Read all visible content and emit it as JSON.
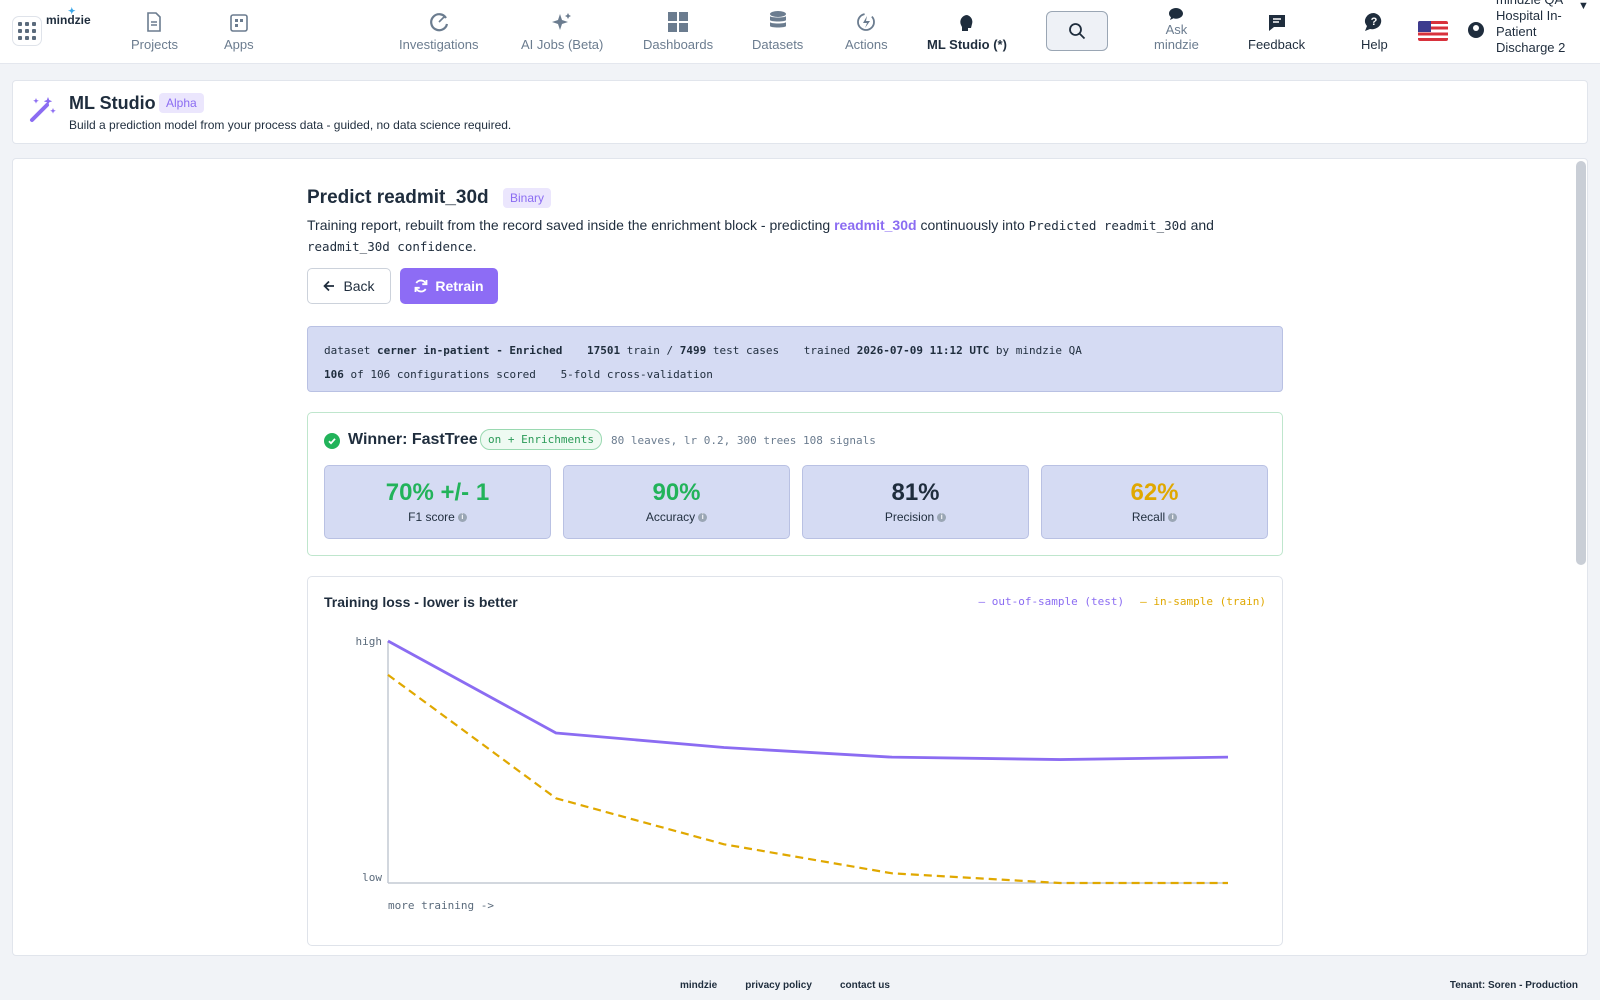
{
  "brand": {
    "logo_text": "mindzie"
  },
  "nav": {
    "projects": "Projects",
    "apps": "Apps",
    "investigations": "Investigations",
    "ai_jobs": "AI Jobs (Beta)",
    "dashboards": "Dashboards",
    "datasets": "Datasets",
    "actions": "Actions",
    "ml_studio": "ML Studio (*)",
    "ask_line1": "Ask",
    "ask_line2": "mindzie",
    "feedback": "Feedback",
    "help": "Help"
  },
  "user": {
    "name": "mindzie QA",
    "project": "Hospital In-Patient Discharge 2"
  },
  "header": {
    "title": "ML Studio",
    "badge": "Alpha",
    "subtitle": "Build a prediction model from your process data - guided, no data science required."
  },
  "report": {
    "title": "Predict readmit_30d",
    "badge": "Binary",
    "desc_prefix": "Training report, rebuilt from the record saved inside the enrichment block - predicting",
    "target": "readmit_30d",
    "desc_mid": "continuously into",
    "output_col": "Predicted readmit_30d",
    "desc_and": "and",
    "confidence_col": "readmit_30d confidence",
    "desc_end": ".",
    "back_label": "Back",
    "retrain_label": "Retrain"
  },
  "meta": {
    "dataset_label": "dataset",
    "dataset_name": "cerner in-patient - Enriched",
    "train_count": "17501",
    "train_label": "train /",
    "test_count": "7499",
    "test_label": "test cases",
    "trained_label": "trained",
    "trained_at": "2026-07-09 11:12 UTC",
    "by_label": "by mindzie QA",
    "configs_scored": "106",
    "configs_label": "of 106 configurations scored",
    "cv_label": "5-fold cross-validation"
  },
  "winner": {
    "title": "Winner: FastTree",
    "pill": "on + Enrichments",
    "params": "80 leaves, lr 0.2, 300 trees 108 signals"
  },
  "metrics": [
    {
      "value": "70% +/- 1",
      "label": "F1 score",
      "color": "#22b35a"
    },
    {
      "value": "90%",
      "label": "Accuracy",
      "color": "#22b35a"
    },
    {
      "value": "81%",
      "label": "Precision",
      "color": "#1f2d3d"
    },
    {
      "value": "62%",
      "label": "Recall",
      "color": "#e0a800"
    }
  ],
  "chart_data": {
    "type": "line",
    "title": "Training loss - lower is better",
    "ylabel_high": "high",
    "ylabel_low": "low",
    "xlabel": "more training ->",
    "x": [
      0,
      1,
      2,
      3,
      4,
      5
    ],
    "ylim": [
      0,
      1
    ],
    "series": [
      {
        "name": "out-of-sample (test)",
        "color": "#8b6cf2",
        "dashed": false,
        "values": [
          1.0,
          0.62,
          0.56,
          0.52,
          0.51,
          0.52
        ]
      },
      {
        "name": "in-sample (train)",
        "color": "#e0a800",
        "dashed": true,
        "values": [
          0.86,
          0.35,
          0.16,
          0.04,
          0.0,
          0.0
        ]
      }
    ]
  },
  "footer": {
    "link1": "mindzie",
    "link2": "privacy policy",
    "link3": "contact us",
    "tenant": "Tenant: Soren - Production"
  }
}
